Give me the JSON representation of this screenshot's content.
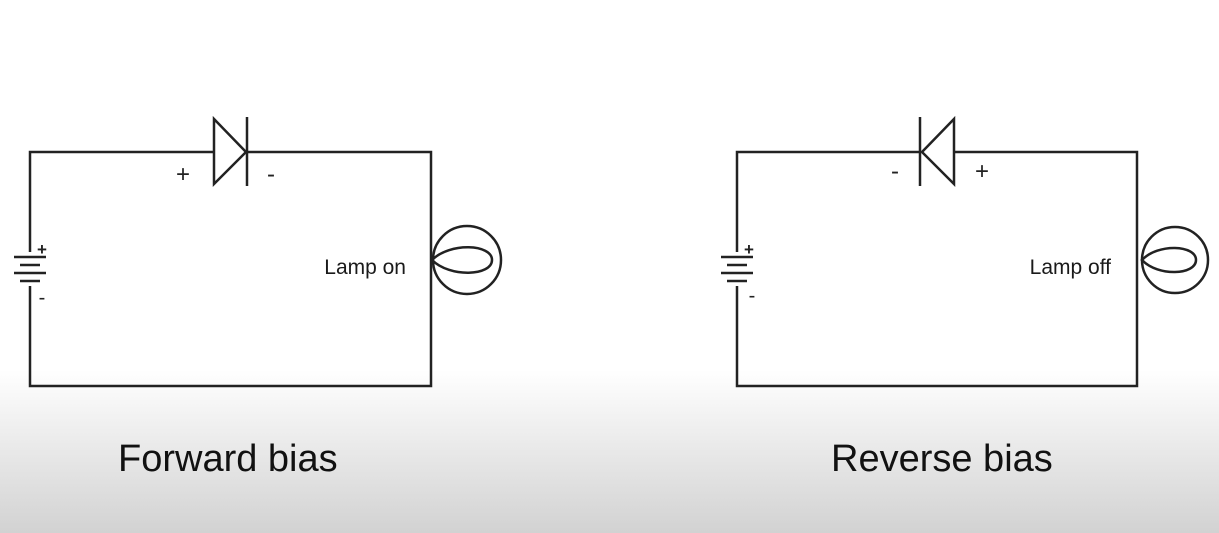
{
  "circuits": [
    {
      "caption": "Forward bias",
      "lamp_label": "Lamp on",
      "diode_left_sign": "+",
      "diode_right_sign": "-",
      "battery_top_sign": "+",
      "battery_bottom_sign": "-"
    },
    {
      "caption": "Reverse bias",
      "lamp_label": "Lamp off",
      "diode_left_sign": "-",
      "diode_right_sign": "+",
      "battery_top_sign": "+",
      "battery_bottom_sign": "-"
    }
  ]
}
